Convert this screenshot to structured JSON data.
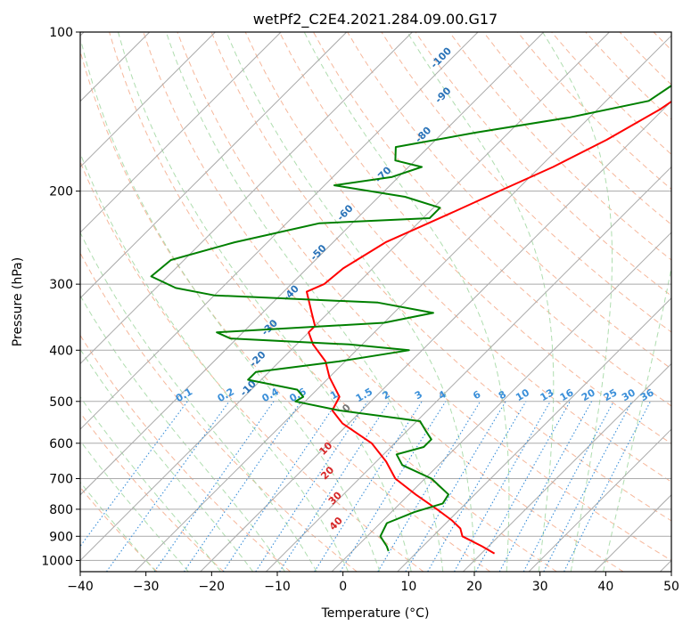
{
  "chart_data": {
    "type": "line",
    "subtype": "skew-t log-p diagram",
    "title": "wetPf2_C2E4.2021.284.09.00.G17",
    "xlabel": "Temperature (°C)",
    "ylabel": "Pressure (hPa)",
    "xlim": [
      -40,
      50
    ],
    "ylim": [
      1050,
      100
    ],
    "y_scale": "log",
    "grid": true,
    "x_ticks": [
      "−40",
      "−30",
      "−20",
      "−10",
      "0",
      "10",
      "20",
      "30",
      "40",
      "50"
    ],
    "y_ticks": [
      "100",
      "200",
      "300",
      "400",
      "500",
      "600",
      "700",
      "800",
      "900",
      "1000"
    ],
    "series": [
      {
        "role": "temperature",
        "color": "#ff0000",
        "points": [
          {
            "p": 100,
            "t": -17.5
          },
          {
            "p": 120,
            "t": -18.0
          },
          {
            "p": 140,
            "t": -20.5
          },
          {
            "p": 160,
            "t": -24.0
          },
          {
            "p": 180,
            "t": -28.0
          },
          {
            "p": 200,
            "t": -32.5
          },
          {
            "p": 220,
            "t": -36.5
          },
          {
            "p": 250,
            "t": -42.0
          },
          {
            "p": 280,
            "t": -44.5
          },
          {
            "p": 300,
            "t": -45.0
          },
          {
            "p": 310,
            "t": -46.5
          },
          {
            "p": 340,
            "t": -42.5
          },
          {
            "p": 360,
            "t": -40.0
          },
          {
            "p": 370,
            "t": -40.0
          },
          {
            "p": 390,
            "t": -37.5
          },
          {
            "p": 420,
            "t": -33.0
          },
          {
            "p": 450,
            "t": -30.0
          },
          {
            "p": 490,
            "t": -25.5
          },
          {
            "p": 520,
            "t": -24.5
          },
          {
            "p": 550,
            "t": -21.0
          },
          {
            "p": 600,
            "t": -13.5
          },
          {
            "p": 650,
            "t": -8.5
          },
          {
            "p": 700,
            "t": -4.5
          },
          {
            "p": 750,
            "t": 1.0
          },
          {
            "p": 800,
            "t": 6.5
          },
          {
            "p": 840,
            "t": 10.5
          },
          {
            "p": 870,
            "t": 13.0
          },
          {
            "p": 900,
            "t": 14.5
          },
          {
            "p": 940,
            "t": 19.0
          },
          {
            "p": 970,
            "t": 22.0
          }
        ]
      },
      {
        "role": "dewpoint",
        "color": "#008000",
        "points": [
          {
            "p": 100,
            "t": -19.0
          },
          {
            "p": 120,
            "t": -21.5
          },
          {
            "p": 135,
            "t": -23.5
          },
          {
            "p": 145,
            "t": -33.0
          },
          {
            "p": 155,
            "t": -45.0
          },
          {
            "p": 165,
            "t": -55.0
          },
          {
            "p": 175,
            "t": -53.0
          },
          {
            "p": 180,
            "t": -48.0
          },
          {
            "p": 188,
            "t": -51.0
          },
          {
            "p": 195,
            "t": -58.5
          },
          {
            "p": 205,
            "t": -46.0
          },
          {
            "p": 215,
            "t": -39.0
          },
          {
            "p": 225,
            "t": -39.0
          },
          {
            "p": 230,
            "t": -55.0
          },
          {
            "p": 250,
            "t": -65.0
          },
          {
            "p": 270,
            "t": -72.0
          },
          {
            "p": 290,
            "t": -72.5
          },
          {
            "p": 305,
            "t": -67.0
          },
          {
            "p": 315,
            "t": -60.0
          },
          {
            "p": 325,
            "t": -34.0
          },
          {
            "p": 340,
            "t": -24.0
          },
          {
            "p": 355,
            "t": -30.0
          },
          {
            "p": 370,
            "t": -54.0
          },
          {
            "p": 380,
            "t": -51.0
          },
          {
            "p": 390,
            "t": -32.0
          },
          {
            "p": 400,
            "t": -22.0
          },
          {
            "p": 420,
            "t": -31.0
          },
          {
            "p": 440,
            "t": -42.0
          },
          {
            "p": 455,
            "t": -42.0
          },
          {
            "p": 475,
            "t": -33.0
          },
          {
            "p": 490,
            "t": -31.0
          },
          {
            "p": 500,
            "t": -31.5
          },
          {
            "p": 520,
            "t": -23.5
          },
          {
            "p": 545,
            "t": -9.5
          },
          {
            "p": 570,
            "t": -7.0
          },
          {
            "p": 590,
            "t": -5.0
          },
          {
            "p": 610,
            "t": -5.0
          },
          {
            "p": 630,
            "t": -8.0
          },
          {
            "p": 660,
            "t": -5.5
          },
          {
            "p": 700,
            "t": 1.0
          },
          {
            "p": 750,
            "t": 6.0
          },
          {
            "p": 780,
            "t": 6.5
          },
          {
            "p": 810,
            "t": 3.5
          },
          {
            "p": 850,
            "t": 1.0
          },
          {
            "p": 900,
            "t": 2.0
          },
          {
            "p": 940,
            "t": 4.5
          },
          {
            "p": 960,
            "t": 5.5
          }
        ]
      }
    ],
    "background": {
      "isotherms_color": "#aaaaaa",
      "dry_adiabats_color": "#f4a582",
      "moist_adiabats_color": "#a6d9a6",
      "mixing_ratio_color": "#3a8fd9",
      "dry_adiabat_labels": [
        "-100",
        "-90",
        "-80",
        "-70",
        "-60",
        "-50",
        "-40",
        "-30",
        "-20",
        "-10"
      ],
      "dry_adiabat_labels_warm": [
        "0",
        "10",
        "20",
        "30",
        "40"
      ],
      "mixing_ratio_labels": [
        "0.1",
        "0.2",
        "0.4",
        "0.6",
        "1",
        "1.5",
        "2",
        "3",
        "4",
        "6",
        "8",
        "10",
        "13",
        "16",
        "20",
        "25",
        "30",
        "36"
      ]
    }
  }
}
